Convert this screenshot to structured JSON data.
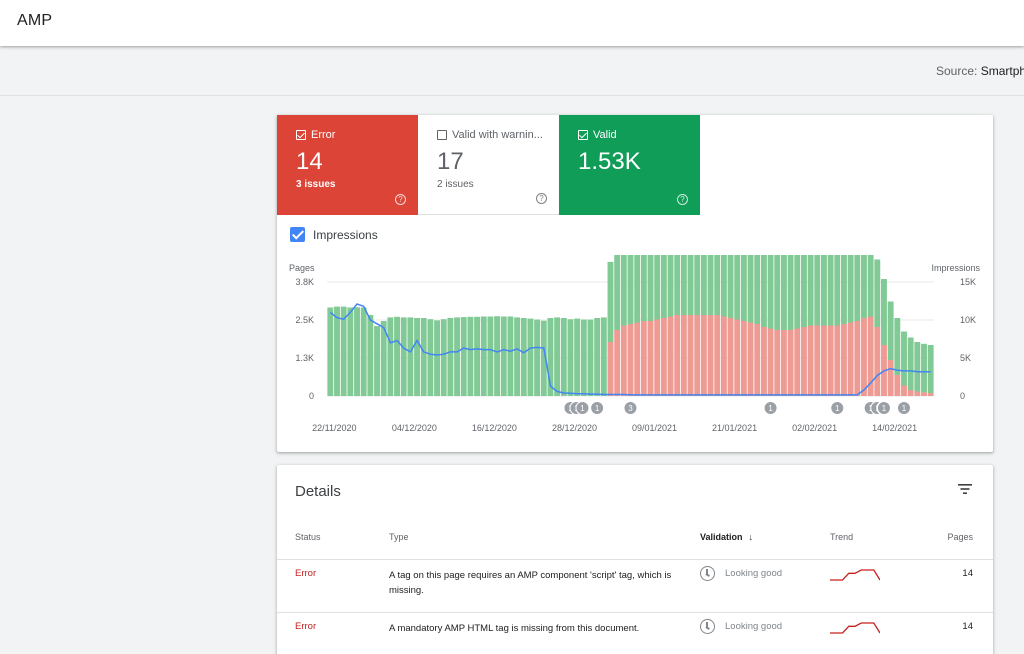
{
  "app": {
    "title": "AMP"
  },
  "source": {
    "label": "Source:",
    "value": "Smartph"
  },
  "tiles": [
    {
      "label": "Error",
      "count": "14",
      "sub": "3 issues",
      "checked": true
    },
    {
      "label": "Valid with warnin...",
      "count": "17",
      "sub": "2 issues",
      "checked": false
    },
    {
      "label": "Valid",
      "count": "1.53K",
      "sub": "",
      "checked": true
    }
  ],
  "impressions_label": "Impressions",
  "colors": {
    "error": "#db4437",
    "valid": "#0f9d58",
    "bar_valid": "#81c995",
    "bar_error": "#ee9b93",
    "impressions": "#4285f4"
  },
  "chart_data": {
    "type": "bar",
    "left_axis": {
      "title": "Pages",
      "ticks": [
        "0",
        "1.3K",
        "2.5K",
        "3.8K"
      ],
      "range": [
        0,
        3800
      ]
    },
    "right_axis": {
      "title": "Impressions",
      "ticks": [
        "0",
        "5K",
        "10K",
        "15K"
      ],
      "range": [
        0,
        15000
      ]
    },
    "x_ticks": [
      "22/11/2020",
      "04/12/2020",
      "16/12/2020",
      "28/12/2020",
      "09/01/2021",
      "21/01/2021",
      "02/02/2021",
      "14/02/2021"
    ],
    "valid_pages": [
      2950,
      2980,
      2980,
      2950,
      2960,
      2950,
      2700,
      2330,
      2500,
      2620,
      2640,
      2620,
      2620,
      2600,
      2600,
      2560,
      2520,
      2560,
      2600,
      2620,
      2630,
      2640,
      2640,
      2650,
      2650,
      2660,
      2650,
      2650,
      2620,
      2600,
      2580,
      2550,
      2510,
      2600,
      2620,
      2600,
      2560,
      2580,
      2550,
      2550,
      2600,
      2620,
      2670,
      2670,
      2670,
      2670,
      2670,
      2670,
      2670,
      2670,
      2670,
      2670,
      2650,
      2650,
      2650,
      2650,
      2650,
      2650,
      2650,
      2650,
      2650,
      2650,
      2650,
      2650,
      2650,
      2650,
      2650,
      2650,
      2650,
      2650,
      2650,
      2650,
      2650,
      2650,
      2650,
      2650,
      2650,
      2650,
      2650,
      2450,
      2400,
      2300,
      2250,
      2200,
      1950,
      1900,
      1800,
      1750,
      1650,
      1620,
      1600
    ],
    "error_pages": [
      0,
      0,
      0,
      0,
      0,
      0,
      0,
      0,
      0,
      0,
      0,
      0,
      0,
      0,
      0,
      0,
      0,
      0,
      0,
      0,
      0,
      0,
      0,
      0,
      0,
      0,
      0,
      0,
      0,
      0,
      0,
      0,
      0,
      0,
      0,
      0,
      0,
      0,
      0,
      0,
      0,
      0,
      1800,
      2200,
      2350,
      2400,
      2450,
      2500,
      2500,
      2550,
      2600,
      2650,
      2700,
      2700,
      2700,
      2700,
      2700,
      2700,
      2700,
      2650,
      2600,
      2550,
      2500,
      2450,
      2400,
      2300,
      2250,
      2200,
      2200,
      2200,
      2250,
      2300,
      2350,
      2350,
      2350,
      2350,
      2350,
      2400,
      2450,
      2500,
      2600,
      2650,
      2300,
      1700,
      1200,
      700,
      350,
      200,
      150,
      120,
      100
    ],
    "impressions": [
      11000,
      10300,
      10100,
      11000,
      12100,
      11800,
      10000,
      9500,
      9000,
      7000,
      7300,
      6300,
      5800,
      7300,
      5800,
      5500,
      5400,
      5500,
      5800,
      5800,
      6300,
      6100,
      6200,
      6100,
      6100,
      5800,
      6100,
      5900,
      6200,
      5700,
      6300,
      6400,
      6300,
      1300,
      600,
      400,
      350,
      300,
      300,
      250,
      250,
      200,
      200,
      200,
      200,
      150,
      150,
      150,
      150,
      150,
      150,
      150,
      150,
      150,
      150,
      150,
      150,
      150,
      150,
      150,
      150,
      150,
      150,
      150,
      150,
      150,
      150,
      150,
      150,
      150,
      150,
      150,
      150,
      150,
      150,
      150,
      150,
      150,
      150,
      150,
      800,
      1700,
      2700,
      3300,
      3600,
      3400,
      3300,
      3300,
      3200,
      3200,
      3200
    ],
    "annotations": [
      {
        "date": "28/12/2020",
        "label": "1"
      },
      {
        "date": "28/12/2020",
        "label": "1"
      },
      {
        "date": "28/12/2020",
        "label": "1"
      },
      {
        "date": "01/01/2021",
        "label": "1"
      },
      {
        "date": "06/01/2021",
        "label": "3"
      },
      {
        "date": "27/01/2021",
        "label": "1"
      },
      {
        "date": "06/02/2021",
        "label": "1"
      },
      {
        "date": "11/02/2021",
        "label": "1"
      },
      {
        "date": "12/02/2021",
        "label": "1"
      },
      {
        "date": "12/02/2021",
        "label": "1"
      },
      {
        "date": "13/02/2021",
        "label": "1"
      },
      {
        "date": "16/02/2021",
        "label": "1"
      }
    ]
  },
  "details": {
    "title": "Details",
    "columns": {
      "status": "Status",
      "type": "Type",
      "validation": "Validation",
      "trend": "Trend",
      "pages": "Pages"
    },
    "rows": [
      {
        "status": "Error",
        "type": "A tag on this page requires an AMP component 'script' tag, which is missing.",
        "validation": "Looking good",
        "pages": "14",
        "trend": [
          0,
          0,
          0,
          2,
          2,
          3,
          3,
          3,
          0
        ]
      },
      {
        "status": "Error",
        "type": "A mandatory AMP HTML tag is missing from this document.",
        "validation": "Looking good",
        "pages": "14",
        "trend": [
          0,
          0,
          0,
          2,
          2,
          3,
          3,
          3,
          0
        ]
      }
    ]
  }
}
